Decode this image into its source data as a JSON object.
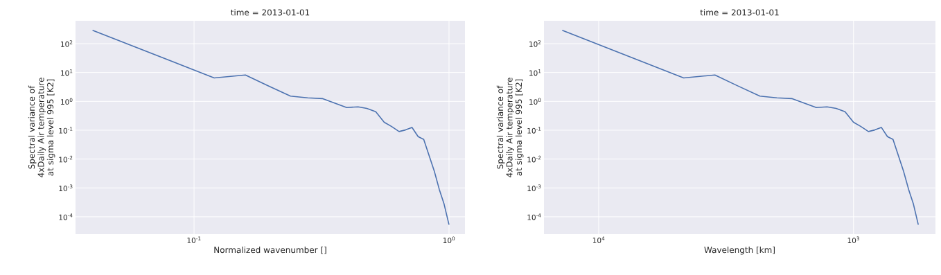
{
  "chart_data": [
    {
      "type": "line",
      "title": "time = 2013-01-01",
      "xlabel": "Normalized wavenumber []",
      "ylabel": "Spectral variance of 4xDaily Air temperature at sigma level 995 [K2]",
      "color": "#4c72b0",
      "log": "xy",
      "grid": true,
      "x": [
        0.04,
        0.12,
        0.159,
        0.195,
        0.239,
        0.279,
        0.32,
        0.397,
        0.44,
        0.476,
        0.516,
        0.557,
        0.594,
        0.637,
        0.675,
        0.716,
        0.757,
        0.796,
        0.875,
        0.916,
        0.955,
        1.0
      ],
      "values": [
        290,
        6.5,
        8.2,
        3.5,
        1.52,
        1.32,
        1.24,
        0.61,
        0.645,
        0.57,
        0.436,
        0.188,
        0.136,
        0.09,
        0.102,
        0.125,
        0.06,
        0.048,
        0.0039,
        0.00089,
        0.00029,
        5.3e-05
      ],
      "xlim": [
        0.0343,
        1.155
      ],
      "ylim": [
        2.5e-05,
        620
      ],
      "xticks": [
        {
          "value": 0.1,
          "label": "10$^{-1}$"
        },
        {
          "value": 1,
          "label": "10$^{0}$"
        }
      ],
      "yticks": [
        {
          "value": 0.0001,
          "label": "10$^{-4}$"
        },
        {
          "value": 0.001,
          "label": "10$^{-3}$"
        },
        {
          "value": 0.01,
          "label": "10$^{-2}$"
        },
        {
          "value": 0.1,
          "label": "10$^{-1}$"
        },
        {
          "value": 1,
          "label": "10$^{0}$"
        },
        {
          "value": 10,
          "label": "10$^{1}$"
        },
        {
          "value": 100,
          "label": "10$^{2}$"
        }
      ]
    },
    {
      "type": "line",
      "title": "time = 2013-01-01",
      "xlabel": "Wavelength [km]",
      "ylabel": "Spectral variance of 4xDaily Air temperature at sigma level 995 [K2]",
      "color": "#4c72b0",
      "log": "xy",
      "grid": true,
      "x": [
        13900,
        4640,
        3500,
        2860,
        2330,
        2000,
        1740,
        1400,
        1270,
        1170,
        1080,
        1000,
        938,
        874,
        825,
        778,
        736,
        700,
        637,
        608,
        583,
        557
      ],
      "values": [
        290,
        6.5,
        8.2,
        3.5,
        1.52,
        1.32,
        1.24,
        0.61,
        0.645,
        0.57,
        0.436,
        0.188,
        0.136,
        0.09,
        0.102,
        0.125,
        0.06,
        0.048,
        0.0039,
        0.00089,
        0.00029,
        5.3e-05
      ],
      "xlim": [
        16400,
        477
      ],
      "ylim": [
        2.5e-05,
        620
      ],
      "xticks": [
        {
          "value": 10000,
          "label": "10$^{4}$"
        },
        {
          "value": 1000,
          "label": "10$^{3}$"
        }
      ],
      "yticks": [
        {
          "value": 0.0001,
          "label": "10$^{-4}$"
        },
        {
          "value": 0.001,
          "label": "10$^{-3}$"
        },
        {
          "value": 0.01,
          "label": "10$^{-2}$"
        },
        {
          "value": 0.1,
          "label": "10$^{-1}$"
        },
        {
          "value": 1,
          "label": "10$^{0}$"
        },
        {
          "value": 10,
          "label": "10$^{1}$"
        },
        {
          "value": 100,
          "label": "10$^{2}$"
        }
      ]
    }
  ]
}
